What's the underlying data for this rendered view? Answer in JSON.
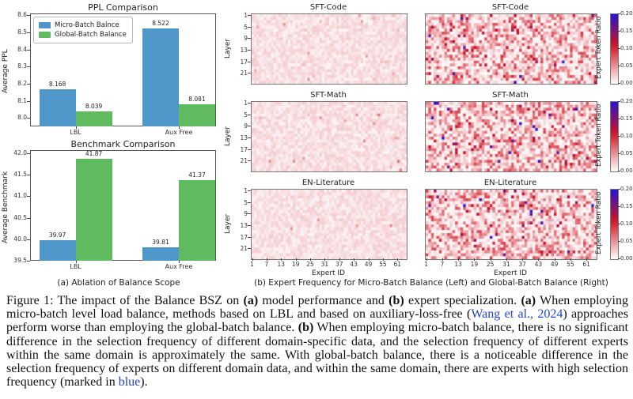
{
  "colors": {
    "bar_blue": "#4f97c9",
    "bar_green": "#5fba60",
    "link": "#2244cc",
    "heat_low": "#ffffff",
    "heat_mid": "#cf1322",
    "heat_high": "#2814d2"
  },
  "figure": {
    "subcaption_a": "(a) Ablation of Balance Scope",
    "subcaption_b": "(b) Expert Frequency for Micro-Batch Balance (Left) and Global-Batch Balance (Right)",
    "caption_segments": [
      {
        "text": "Figure 1: The impact of the Balance BSZ on "
      },
      {
        "text": "(a)",
        "bold": true
      },
      {
        "text": " model performance and "
      },
      {
        "text": "(b)",
        "bold": true
      },
      {
        "text": " expert specialization. "
      },
      {
        "text": "(a)",
        "bold": true
      },
      {
        "text": " When employing micro-batch level load balance, methods based on LBL and based on auxiliary-loss-free ("
      },
      {
        "text": "Wang et al., 2024",
        "link": true
      },
      {
        "text": ") approaches perform worse than employing the global-batch balance. "
      },
      {
        "text": "(b)",
        "bold": true
      },
      {
        "text": " When employing micro-batch balance, there is no significant difference in the selection frequency of different domain-specific data, and the selection frequency of different experts within the same domain is approximately the same. With global-batch balance, there is a noticeable difference in the selection frequency of experts on different domain data, and within the same domain, there are experts with high selection frequency (marked in "
      },
      {
        "text": "blue",
        "link": true
      },
      {
        "text": ")."
      }
    ]
  },
  "chart_data": [
    {
      "id": "ppl-comparison",
      "type": "bar",
      "title": "PPL Comparison",
      "xlabel": "",
      "ylabel": "Average PPL",
      "categories": [
        "LBL",
        "Aux Free"
      ],
      "series": [
        {
          "name": "Micro-Batch Balnce",
          "color_key": "bar_blue",
          "values": [
            8.168,
            8.522
          ],
          "labels": [
            "8.168",
            "8.522"
          ]
        },
        {
          "name": "Global-Batch Balance",
          "color_key": "bar_green",
          "values": [
            8.039,
            8.081
          ],
          "labels": [
            "8.039",
            "8.081"
          ]
        }
      ],
      "yticks": [
        8.0,
        8.1,
        8.2,
        8.3,
        8.4,
        8.5,
        8.6
      ],
      "ytick_labels": [
        "8.0",
        "8.1",
        "8.2",
        "8.3",
        "8.4",
        "8.5",
        "8.6"
      ],
      "ylim": [
        7.95,
        8.61
      ],
      "legend_position": "upper left",
      "grid": false
    },
    {
      "id": "benchmark-comparison",
      "type": "bar",
      "title": "Benchmark Comparison",
      "xlabel": "",
      "ylabel": "Average Benchmark",
      "categories": [
        "LBL",
        "Aux Free"
      ],
      "series": [
        {
          "name": "Micro-Batch Balnce",
          "color_key": "bar_blue",
          "values": [
            39.97,
            39.81
          ],
          "labels": [
            "39.97",
            "39.81"
          ]
        },
        {
          "name": "Global-Batch Balance",
          "color_key": "bar_green",
          "values": [
            41.87,
            41.37
          ],
          "labels": [
            "41.87",
            "41.37"
          ]
        }
      ],
      "yticks": [
        39.5,
        40.0,
        40.5,
        41.0,
        41.5,
        42.0
      ],
      "ytick_labels": [
        "39.5",
        "40.0",
        "40.5",
        "41.0",
        "41.5",
        "42.0"
      ],
      "ylim": [
        39.5,
        42.07
      ],
      "legend_position": "none",
      "grid": false
    },
    {
      "id": "expert-frequency-heatmaps",
      "type": "heatmap",
      "xlabel": "Expert ID",
      "ylabel": "Layer",
      "n_experts": 64,
      "n_layers": 24,
      "xticks": [
        1,
        7,
        13,
        19,
        25,
        31,
        37,
        43,
        49,
        55,
        61
      ],
      "yticks": [
        1,
        5,
        9,
        13,
        17,
        21
      ],
      "value_range": [
        0.0,
        0.2
      ],
      "colorbar": {
        "label": "Expert Token Ratio",
        "tick_labels_top_to_bottom": [
          "0.20",
          "0.15",
          "0.10",
          "0.05",
          "0.00"
        ]
      },
      "columns": [
        "Micro-Batch Balance (Left)",
        "Global-Batch Balance (Right)"
      ],
      "panels": [
        {
          "title": "SFT-Code",
          "column": "micro-batch",
          "pattern": "near-uniform light ratios ~0.016",
          "seed": 11,
          "mode": "micro",
          "hot": 0.012,
          "extreme": 0
        },
        {
          "title": "SFT-Code",
          "column": "global-batch",
          "pattern": "high variance, hot experts ~0.10-0.15, rare ~0.20 blue cells",
          "seed": 22,
          "mode": "global",
          "hot": 0.045,
          "extreme": 0.006
        },
        {
          "title": "SFT-Math",
          "column": "micro-batch",
          "pattern": "near-uniform light ratios with two ~0.06 dots",
          "seed": 33,
          "mode": "micro",
          "hot": 0.01,
          "extreme": 0.002
        },
        {
          "title": "SFT-Math",
          "column": "global-batch",
          "pattern": "high variance, many hot experts, ~10 blue cells near 0.20",
          "seed": 44,
          "mode": "global",
          "hot": 0.05,
          "extreme": 0.013
        },
        {
          "title": "EN-Literature",
          "column": "micro-batch",
          "pattern": "most uniform, very light",
          "seed": 55,
          "mode": "micro",
          "hot": 0.004,
          "extreme": 0
        },
        {
          "title": "EN-Literature",
          "column": "global-batch",
          "pattern": "high variance, hot experts, a few blue/purple cells",
          "seed": 66,
          "mode": "global",
          "hot": 0.04,
          "extreme": 0.007
        }
      ]
    }
  ]
}
